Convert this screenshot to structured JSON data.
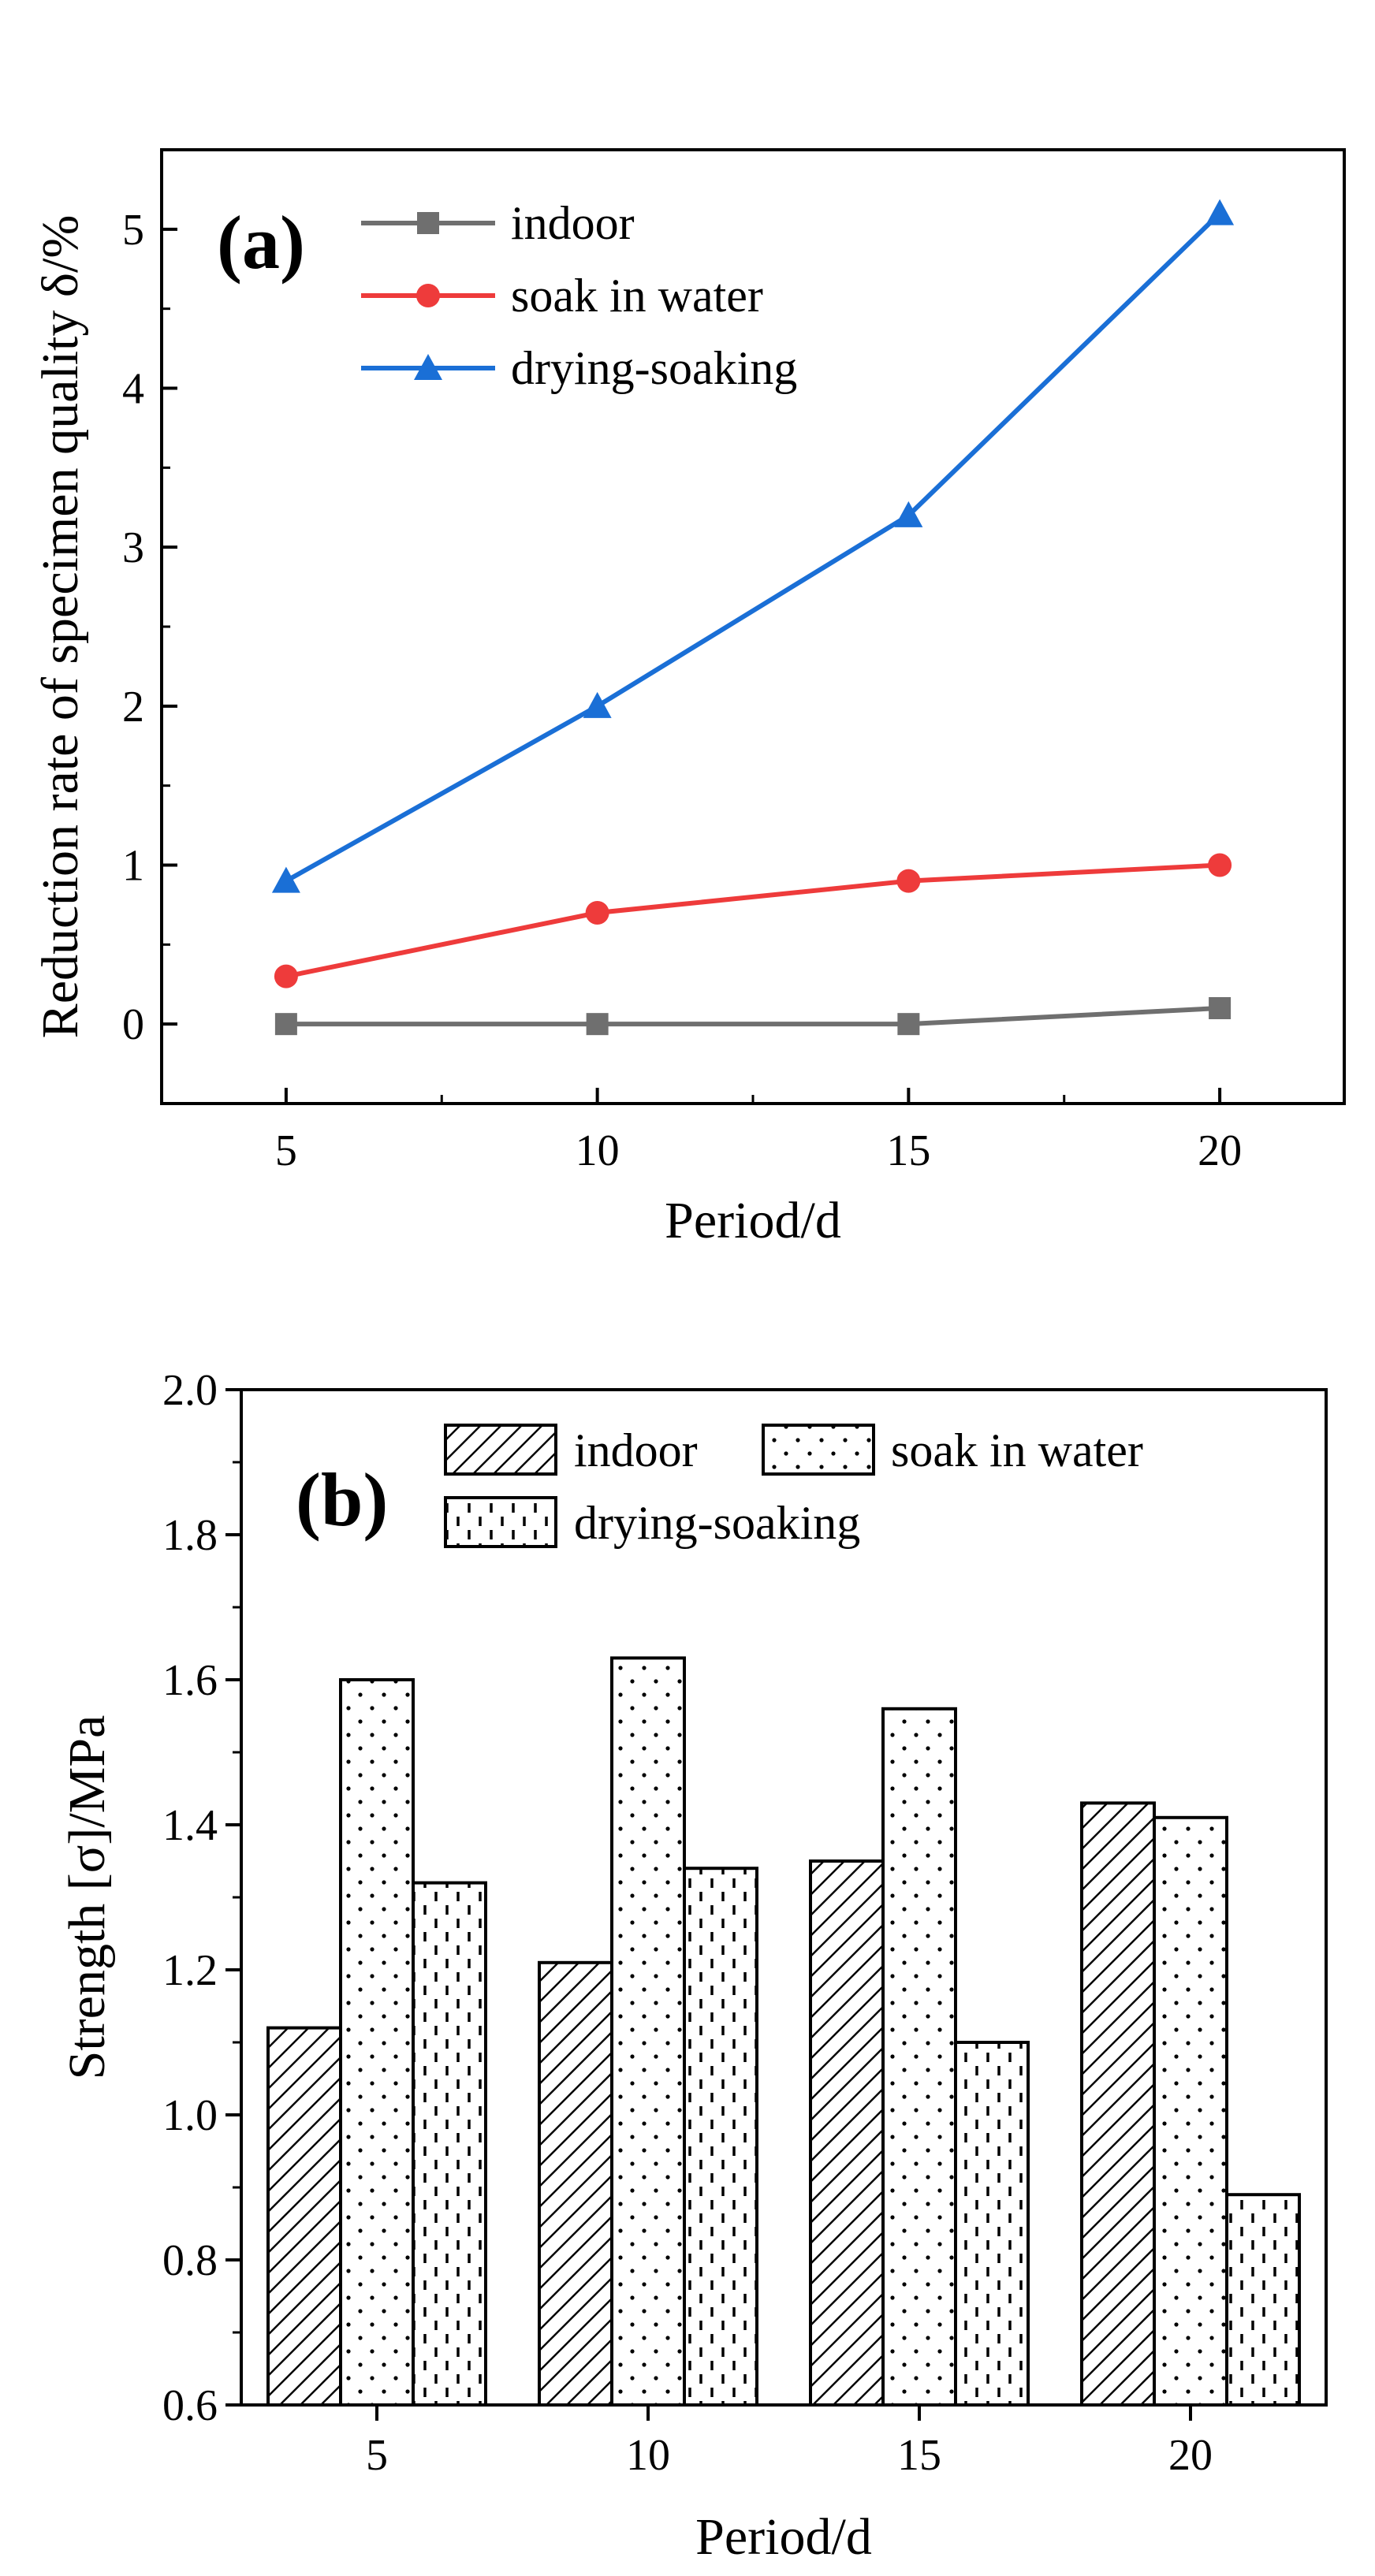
{
  "chart_data": [
    {
      "type": "line",
      "panel_label": "(a)",
      "title": "",
      "xlabel": "Period/d",
      "ylabel": "Reduction rate of specimen quality δ/%",
      "x": [
        5,
        10,
        15,
        20
      ],
      "x_ticks": [
        "5",
        "10",
        "15",
        "20"
      ],
      "y_ticks": [
        "0",
        "1",
        "2",
        "3",
        "4",
        "5"
      ],
      "xlim": [
        3,
        22
      ],
      "ylim": [
        -0.5,
        5.5
      ],
      "grid": false,
      "legend_position": "top-left",
      "series": [
        {
          "name": "indoor",
          "values": [
            0,
            0,
            0,
            0.1
          ],
          "color": "#6f6f6f",
          "marker": "square"
        },
        {
          "name": "soak in water",
          "values": [
            0.3,
            0.7,
            0.9,
            1.0
          ],
          "color": "#ee3b3b",
          "marker": "circle"
        },
        {
          "name": "drying-soaking",
          "values": [
            0.9,
            2.0,
            3.2,
            5.1
          ],
          "color": "#1a6fd6",
          "marker": "triangle"
        }
      ]
    },
    {
      "type": "bar",
      "panel_label": "(b)",
      "title": "",
      "xlabel": "Period/d",
      "ylabel": "Strength [σ]/MPa",
      "categories": [
        "5",
        "10",
        "15",
        "20"
      ],
      "y_ticks": [
        "0.6",
        "0.8",
        "1.0",
        "1.2",
        "1.4",
        "1.6",
        "1.8",
        "2.0"
      ],
      "ylim": [
        0.6,
        2.0
      ],
      "grid": false,
      "legend_position": "top",
      "series": [
        {
          "name": "indoor",
          "values": [
            1.12,
            1.21,
            1.35,
            1.43
          ],
          "pattern": "diagonal-hatch"
        },
        {
          "name": "soak in water",
          "values": [
            1.6,
            1.63,
            1.56,
            1.41
          ],
          "pattern": "dots"
        },
        {
          "name": "drying-soaking",
          "values": [
            1.32,
            1.34,
            1.1,
            0.89
          ],
          "pattern": "dashes"
        }
      ]
    }
  ]
}
